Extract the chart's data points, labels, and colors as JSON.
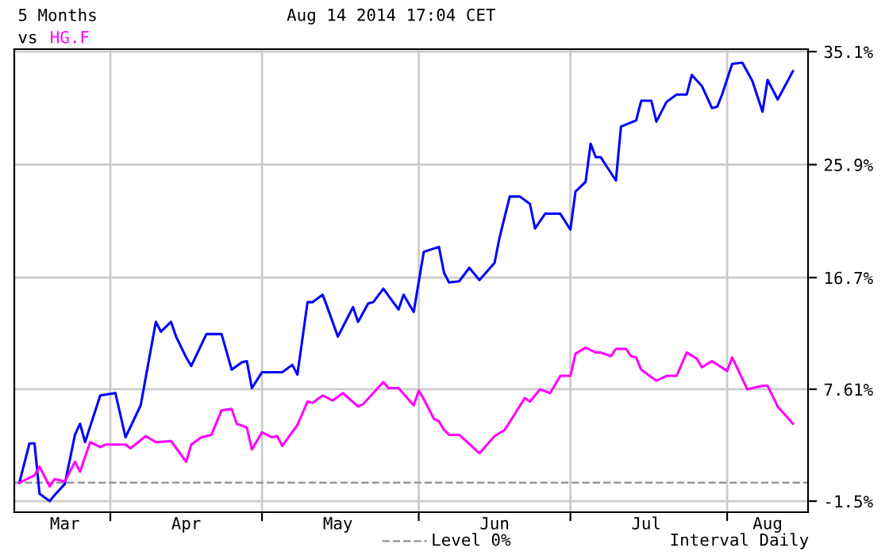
{
  "chart_data": {
    "type": "line",
    "title": "5 Months",
    "subtitle": "vs",
    "x": [
      "2014-03-14",
      "2014-03-16",
      "2014-03-17",
      "2014-03-18",
      "2014-03-20",
      "2014-03-21",
      "2014-03-23",
      "2014-03-25",
      "2014-03-26",
      "2014-03-27",
      "2014-03-30",
      "2014-04-02",
      "2014-04-04",
      "2014-04-07",
      "2014-04-10",
      "2014-04-11",
      "2014-04-13",
      "2014-04-14",
      "2014-04-16",
      "2014-04-17",
      "2014-04-20",
      "2014-04-23",
      "2014-04-25",
      "2014-04-27",
      "2014-04-28",
      "2014-04-29",
      "2014-05-01",
      "2014-05-05",
      "2014-05-07",
      "2014-05-08",
      "2014-05-10",
      "2014-05-11",
      "2014-05-13",
      "2014-05-14",
      "2014-05-16",
      "2014-05-19",
      "2014-05-20",
      "2014-05-22",
      "2014-05-23",
      "2014-05-25",
      "2014-05-28",
      "2014-05-29",
      "2014-05-31",
      "2014-06-02",
      "2014-06-05",
      "2014-06-06",
      "2014-06-07",
      "2014-06-09",
      "2014-06-11",
      "2014-06-13",
      "2014-06-16",
      "2014-06-17",
      "2014-06-19",
      "2014-06-21",
      "2014-06-23",
      "2014-06-24",
      "2014-06-26",
      "2014-06-29",
      "2014-07-01",
      "2014-07-02",
      "2014-07-04",
      "2014-07-05",
      "2014-07-06",
      "2014-07-07",
      "2014-07-10",
      "2014-07-11",
      "2014-07-14",
      "2014-07-15",
      "2014-07-17",
      "2014-07-18",
      "2014-07-20",
      "2014-07-22",
      "2014-07-24",
      "2014-07-25",
      "2014-07-27",
      "2014-07-29",
      "2014-07-30",
      "2014-07-31",
      "2014-08-02",
      "2014-08-04",
      "2014-08-06",
      "2014-08-08",
      "2014-08-09",
      "2014-08-11",
      "2014-08-14"
    ],
    "series": [
      {
        "color": "#0000ff",
        "values": [
          0,
          3.2,
          3.2,
          -0.9,
          -1.5,
          -1.0,
          -0.1,
          3.9,
          4.8,
          3.3,
          7.1,
          7.3,
          3.7,
          6.3,
          13.1,
          12.3,
          13.1,
          11.9,
          10.2,
          9.5,
          12.1,
          12.1,
          9.2,
          9.8,
          9.9,
          7.7,
          9.0,
          9.0,
          9.6,
          8.8,
          14.7,
          14.7,
          15.3,
          14.2,
          11.9,
          14.3,
          13.1,
          14.6,
          14.7,
          15.8,
          14.1,
          15.3,
          13.9,
          18.8,
          19.2,
          17.1,
          16.3,
          16.4,
          17.5,
          16.5,
          17.9,
          20.0,
          23.3,
          23.3,
          22.7,
          20.7,
          21.9,
          21.9,
          20.6,
          23.7,
          24.5,
          27.6,
          26.5,
          26.5,
          24.6,
          29.0,
          29.5,
          31.1,
          31.1,
          29.4,
          31.0,
          31.6,
          31.6,
          33.2,
          32.3,
          30.5,
          30.6,
          31.6,
          34.1,
          34.2,
          32.7,
          30.2,
          32.8,
          31.2,
          33.5
        ]
      },
      {
        "name": "HG.F",
        "color": "#ff00ff",
        "x": [
          "2014-03-14",
          "2014-03-17",
          "2014-03-18",
          "2014-03-20",
          "2014-03-21",
          "2014-03-23",
          "2014-03-25",
          "2014-03-26",
          "2014-03-28",
          "2014-03-30",
          "2014-03-31",
          "2014-04-04",
          "2014-04-05",
          "2014-04-08",
          "2014-04-10",
          "2014-04-13",
          "2014-04-16",
          "2014-04-17",
          "2014-04-19",
          "2014-04-21",
          "2014-04-23",
          "2014-04-25",
          "2014-04-26",
          "2014-04-28",
          "2014-04-29",
          "2014-05-01",
          "2014-05-03",
          "2014-05-04",
          "2014-05-05",
          "2014-05-08",
          "2014-05-10",
          "2014-05-11",
          "2014-05-13",
          "2014-05-15",
          "2014-05-17",
          "2014-05-20",
          "2014-05-21",
          "2014-05-25",
          "2014-05-26",
          "2014-05-28",
          "2014-05-31",
          "2014-06-01",
          "2014-06-02",
          "2014-06-04",
          "2014-06-05",
          "2014-06-06",
          "2014-06-07",
          "2014-06-09",
          "2014-06-13",
          "2014-06-16",
          "2014-06-18",
          "2014-06-22",
          "2014-06-23",
          "2014-06-25",
          "2014-06-27",
          "2014-06-29",
          "2014-07-01",
          "2014-07-02",
          "2014-07-04",
          "2014-07-06",
          "2014-07-07",
          "2014-07-09",
          "2014-07-10",
          "2014-07-12",
          "2014-07-13",
          "2014-07-14",
          "2014-07-15",
          "2014-07-18",
          "2014-07-20",
          "2014-07-22",
          "2014-07-24",
          "2014-07-26",
          "2014-07-27",
          "2014-07-29",
          "2014-08-01",
          "2014-08-02",
          "2014-08-05",
          "2014-08-08",
          "2014-08-09",
          "2014-08-11",
          "2014-08-14"
        ],
        "values": [
          0,
          0.6,
          1.3,
          -0.3,
          0.3,
          0.1,
          1.7,
          0.9,
          3.3,
          2.9,
          3.1,
          3.1,
          2.8,
          3.8,
          3.3,
          3.4,
          1.7,
          3.1,
          3.7,
          3.9,
          5.9,
          6.0,
          4.8,
          4.5,
          2.7,
          4.1,
          3.7,
          3.8,
          3.0,
          4.7,
          6.6,
          6.5,
          7.1,
          6.7,
          7.3,
          6.2,
          6.4,
          8.2,
          7.7,
          7.7,
          6.3,
          7.5,
          6.8,
          5.2,
          5.0,
          4.3,
          3.9,
          3.9,
          2.4,
          3.8,
          4.3,
          6.9,
          6.6,
          7.6,
          7.3,
          8.7,
          8.7,
          10.5,
          11.0,
          10.6,
          10.6,
          10.3,
          10.9,
          10.9,
          10.3,
          10.2,
          9.2,
          8.3,
          8.7,
          8.7,
          10.6,
          10.1,
          9.4,
          9.9,
          9.1,
          10.2,
          7.6,
          7.9,
          7.9,
          6.2,
          4.8
        ]
      }
    ],
    "xlim": [
      "2014-03-13",
      "2014-08-17"
    ],
    "xticks": [
      {
        "value": "2014-03-23",
        "label": "Mar"
      },
      {
        "value": "2014-04-01",
        "label": null
      },
      {
        "value": "2014-04-16",
        "label": "Apr"
      },
      {
        "value": "2014-05-01",
        "label": null
      },
      {
        "value": "2014-05-16",
        "label": "May"
      },
      {
        "value": "2014-06-01",
        "label": null
      },
      {
        "value": "2014-06-16",
        "label": "Jun"
      },
      {
        "value": "2014-07-01",
        "label": null
      },
      {
        "value": "2014-07-16",
        "label": "Jul"
      },
      {
        "value": "2014-08-01",
        "label": null
      },
      {
        "value": "2014-08-09",
        "label": "Aug"
      }
    ],
    "ylim": [
      -2.4,
      35.3
    ],
    "yticks": [
      {
        "value": -1.5,
        "label": "-1.5%"
      },
      {
        "value": 7.61,
        "label": "7.61%"
      },
      {
        "value": 16.7,
        "label": "16.7%"
      },
      {
        "value": 25.9,
        "label": "25.9%"
      },
      {
        "value": 35.1,
        "label": "35.1%"
      }
    ],
    "grid": true,
    "legend": "bottom",
    "line_style": "solid",
    "ref_lines": [
      {
        "axis": "y",
        "value": 0,
        "label": "Level 0%",
        "color": "#999999",
        "line_style": "dashed"
      }
    ],
    "annotations": [
      "Aug 14 2014 17:04 CET",
      "Interval Daily"
    ]
  }
}
